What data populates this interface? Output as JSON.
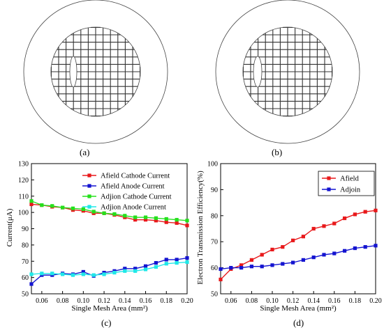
{
  "captions": [
    "(a)",
    "(b)",
    "(c)",
    "(d)"
  ],
  "colors": {
    "red": "#e8191b",
    "blue": "#1414d0",
    "green": "#25e01c",
    "cyan": "#1fe8e8",
    "grid_line": "#333333"
  },
  "chart_data": [
    {
      "type": "line",
      "title": "",
      "xlabel": "Single Mesh Area (mm²)",
      "ylabel": "Current(μA)",
      "xlim": [
        0.05,
        0.2
      ],
      "ylim": [
        50,
        130
      ],
      "xticks": [
        0.06,
        0.08,
        0.1,
        0.12,
        0.14,
        0.16,
        0.18,
        0.2
      ],
      "yticks": [
        50,
        60,
        70,
        80,
        90,
        100,
        110,
        120,
        130
      ],
      "legend": "top-right",
      "grid": false,
      "x": [
        0.05,
        0.06,
        0.07,
        0.08,
        0.09,
        0.1,
        0.11,
        0.12,
        0.13,
        0.14,
        0.15,
        0.16,
        0.17,
        0.18,
        0.19,
        0.2
      ],
      "series": [
        {
          "name": "Afield Cathode Current",
          "color": "red",
          "values": [
            105,
            104.5,
            103.5,
            103,
            101.5,
            101,
            99.5,
            99.5,
            98.5,
            97,
            95.5,
            95.5,
            95,
            94,
            93.5,
            92
          ]
        },
        {
          "name": "Afield Anode Current",
          "color": "blue",
          "values": [
            56,
            61.5,
            61.5,
            62.5,
            62,
            63.5,
            61,
            63,
            64,
            65.5,
            65.5,
            67,
            69,
            71,
            71,
            72
          ]
        },
        {
          "name": "Adjion Cathode Current",
          "color": "green",
          "values": [
            107,
            104.5,
            104,
            103,
            102.5,
            102,
            100.5,
            99.5,
            99,
            98,
            97,
            97,
            96.5,
            96,
            95.5,
            95
          ]
        },
        {
          "name": "Adjion Anode Current",
          "color": "cyan",
          "values": [
            62,
            62.5,
            62.5,
            62,
            61.5,
            62,
            61.5,
            62,
            63,
            64,
            64,
            65,
            66.5,
            68.5,
            69,
            69.5
          ]
        }
      ]
    },
    {
      "type": "line",
      "title": "",
      "xlabel": "Single Mesh Area (mm²)",
      "ylabel": "Electron Transmission Efficiency(%)",
      "xlim": [
        0.05,
        0.2
      ],
      "ylim": [
        50,
        100
      ],
      "xticks": [
        0.06,
        0.08,
        0.1,
        0.12,
        0.14,
        0.16,
        0.18,
        0.2
      ],
      "yticks": [
        50,
        60,
        70,
        80,
        90,
        100
      ],
      "legend": "top-right",
      "grid": false,
      "x": [
        0.05,
        0.06,
        0.07,
        0.08,
        0.09,
        0.1,
        0.11,
        0.12,
        0.13,
        0.14,
        0.15,
        0.16,
        0.17,
        0.18,
        0.19,
        0.2
      ],
      "series": [
        {
          "name": "Afield",
          "color": "red",
          "values": [
            55.5,
            59.5,
            61,
            63,
            65,
            67,
            68,
            70.5,
            72,
            75,
            76,
            77,
            79,
            80.5,
            81.5,
            82
          ]
        },
        {
          "name": "Adjoin",
          "color": "blue",
          "values": [
            59.5,
            60,
            60,
            60.5,
            60.5,
            61,
            61.5,
            62,
            63,
            64,
            65,
            65.5,
            66.5,
            67.5,
            68,
            68.5
          ]
        }
      ]
    }
  ]
}
